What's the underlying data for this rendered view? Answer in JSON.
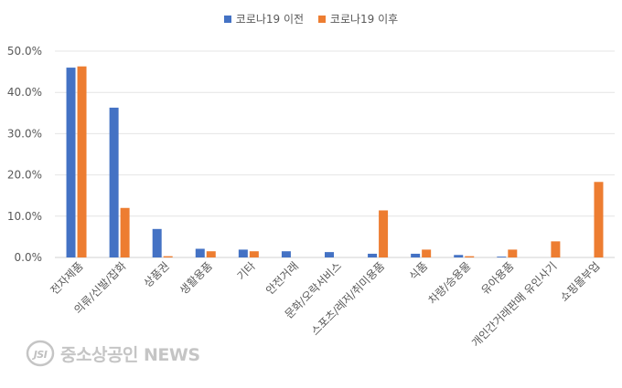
{
  "chart_data": {
    "type": "bar",
    "categories": [
      "전자제품",
      "의류/신발/잡화",
      "상품권",
      "생활용품",
      "기타",
      "안전거래",
      "문화/오락서비스",
      "스포츠/레저/취미용품",
      "식품",
      "차량/승용물",
      "유아용품",
      "개인간거래판매 유인사기",
      "쇼핑몰부업"
    ],
    "series": [
      {
        "name": "코로나19 이전",
        "color": "#4472C4",
        "values": [
          46.0,
          36.3,
          6.9,
          2.1,
          1.9,
          1.5,
          1.3,
          0.9,
          0.9,
          0.6,
          0.2,
          0.0,
          0.0
        ]
      },
      {
        "name": "코로나19 이후",
        "color": "#ED7D31",
        "values": [
          46.3,
          12.0,
          0.3,
          1.5,
          1.5,
          0.0,
          0.0,
          11.4,
          1.9,
          0.3,
          1.9,
          3.9,
          18.3
        ]
      }
    ],
    "yticks": [
      "0.0%",
      "10.0%",
      "20.0%",
      "30.0%",
      "40.0%",
      "50.0%"
    ],
    "ylim": [
      0,
      50
    ],
    "grid": true,
    "legend_position": "top-center",
    "title": "",
    "xlabel": "",
    "ylabel": ""
  },
  "watermark": {
    "text": "중소상공인 NEWS",
    "logo_letters": "JSI"
  }
}
